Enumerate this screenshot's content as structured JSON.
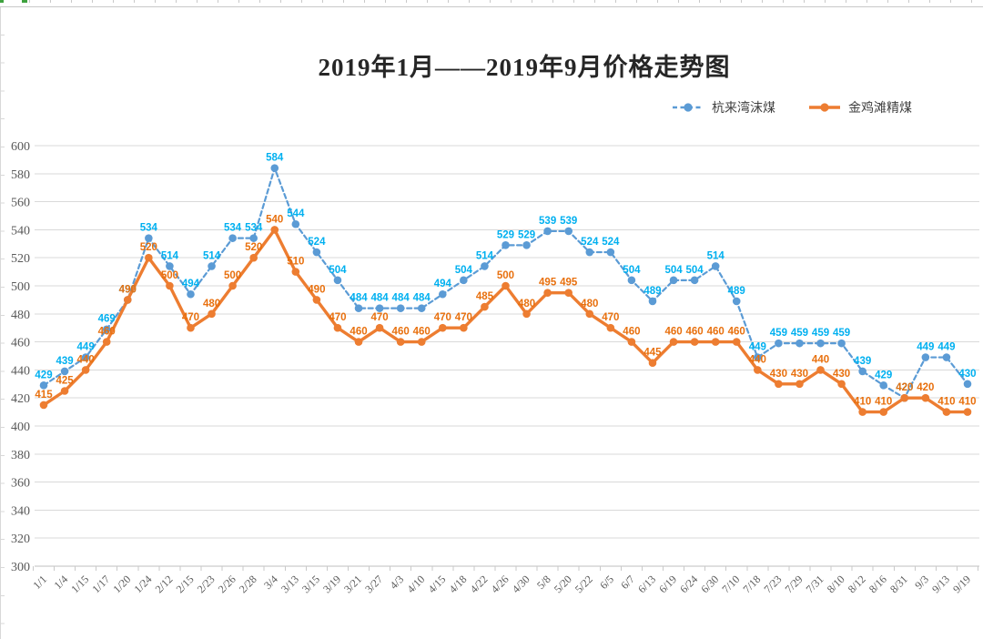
{
  "chart_data": {
    "type": "line",
    "title": "2019年1月——2019年9月价格走势图",
    "categories": [
      "1/1",
      "1/4",
      "1/15",
      "1/17",
      "1/20",
      "1/24",
      "2/12",
      "2/15",
      "2/23",
      "2/26",
      "2/28",
      "3/4",
      "3/13",
      "3/15",
      "3/19",
      "3/21",
      "3/27",
      "4/3",
      "4/10",
      "4/15",
      "4/18",
      "4/22",
      "4/26",
      "4/30",
      "5/8",
      "5/20",
      "5/22",
      "6/5",
      "6/7",
      "6/13",
      "6/19",
      "6/24",
      "6/30",
      "7/10",
      "7/18",
      "7/23",
      "7/29",
      "7/31",
      "8/10",
      "8/12",
      "8/16",
      "8/31",
      "9/3",
      "9/13",
      "9/19"
    ],
    "series": [
      {
        "name": "杭来湾沫煤",
        "color": "#5B9BD5",
        "label_color": "#00B0F0",
        "line_style": "dashed",
        "values": [
          429,
          439,
          449,
          469,
          490,
          534,
          514,
          494,
          514,
          534,
          534,
          584,
          544,
          524,
          504,
          484,
          484,
          484,
          484,
          494,
          504,
          514,
          529,
          529,
          539,
          539,
          524,
          524,
          504,
          489,
          504,
          504,
          514,
          489,
          449,
          459,
          459,
          459,
          459,
          439,
          429,
          420,
          449,
          449,
          430
        ]
      },
      {
        "name": "金鸡滩精煤",
        "color": "#ED7D31",
        "label_color": "#E8700E",
        "line_style": "solid",
        "values": [
          415,
          425,
          440,
          460,
          490,
          520,
          500,
          470,
          480,
          500,
          520,
          540,
          510,
          490,
          470,
          460,
          470,
          460,
          460,
          470,
          470,
          485,
          500,
          480,
          495,
          495,
          480,
          470,
          460,
          445,
          460,
          460,
          460,
          460,
          440,
          430,
          430,
          440,
          430,
          410,
          410,
          420,
          420,
          410,
          410
        ]
      }
    ],
    "xlabel": "",
    "ylabel": "",
    "ylim": [
      300,
      600
    ],
    "ytick_step": 20,
    "grid": true,
    "legend_position": "top-right",
    "data_labels": true
  }
}
